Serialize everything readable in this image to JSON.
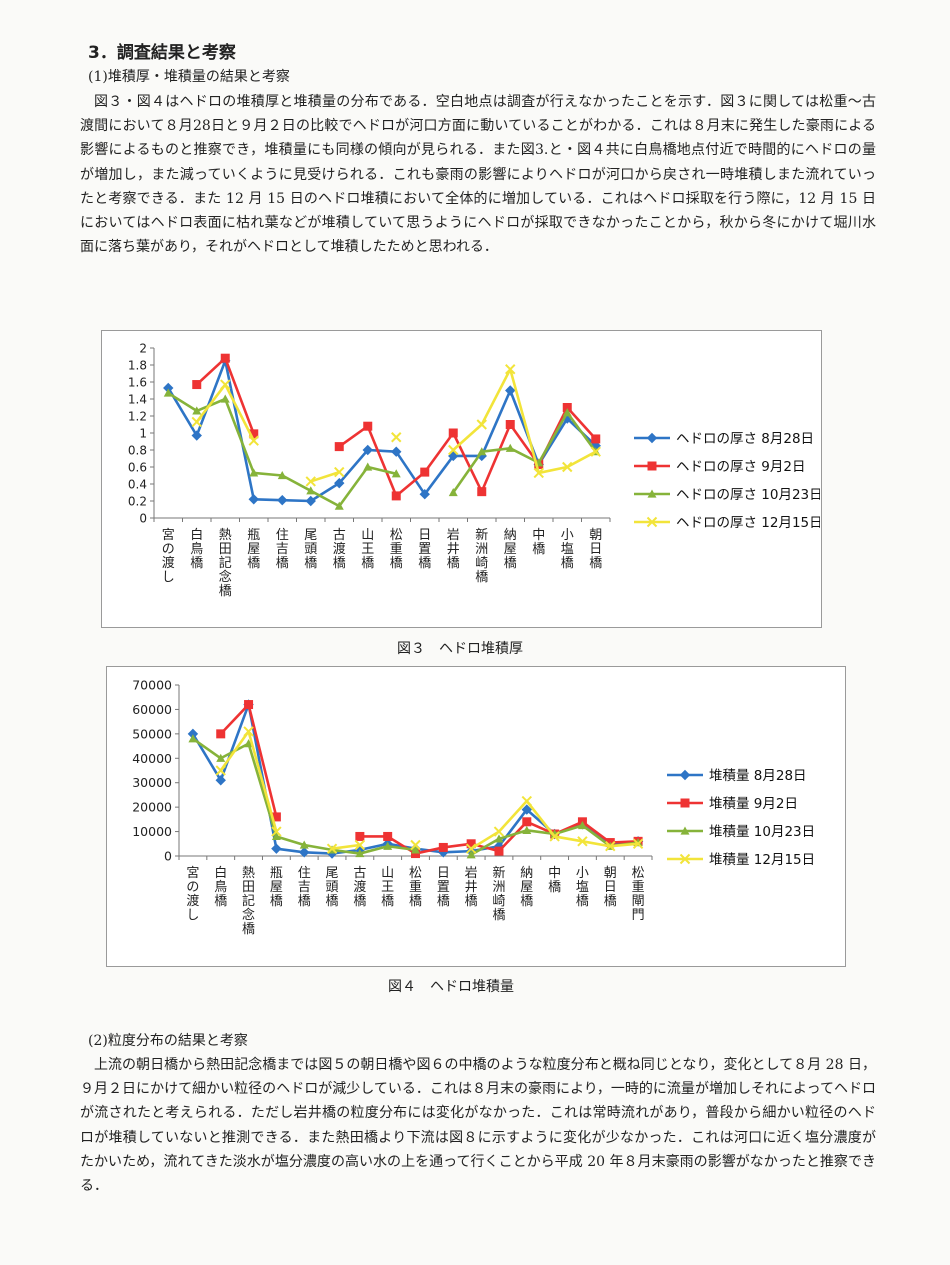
{
  "section_title": "3．調査結果と考察",
  "sub1_title": "(1)堆積厚・堆積量の結果と考察",
  "para1": "図３・図４はヘドロの堆積厚と堆積量の分布である．空白地点は調査が行えなかったことを示す．図３に関しては松重〜古渡間において８月28日と９月２日の比較でヘドロが河口方面に動いていることがわかる．これは８月末に発生した豪雨による影響によるものと推察でき，堆積量にも同様の傾向が見られる．また図3.と・図４共に白鳥橋地点付近で時間的にヘドロの量が増加し，また減っていくように見受けられる．これも豪雨の影響によりヘドロが河口から戻され一時堆積しまた流れていったと考察できる．また 12 月 15 日のヘドロ堆積において全体的に増加している．これはヘドロ採取を行う際に，12 月 15 日においてはヘドロ表面に枯れ葉などが堆積していて思うようにヘドロが採取できなかったことから，秋から冬にかけて堀川水面に落ち葉があり，それがヘドロとして堆積したためと思われる．",
  "fig3_caption": "図３　ヘドロ堆積厚",
  "fig4_caption": "図４　ヘドロ堆積量",
  "sub2_title": "(2)粒度分布の結果と考察",
  "para2": "上流の朝日橋から熱田記念橋までは図５の朝日橋や図６の中橋のような粒度分布と概ね同じとなり，変化として８月 28 日，９月２日にかけて細かい粒径のヘドロが減少している．これは８月末の豪雨により，一時的に流量が増加しそれによってヘドロが流されたと考えられる．ただし岩井橋の粒度分布には変化がなかった．これは常時流れがあり，普段から細かい粒径のヘドロが堆積していないと推測できる．また熱田橋より下流は図８に示すように変化が少なかった．これは河口に近く塩分濃度がたかいため，流れてきた淡水が塩分濃度の高い水の上を通って行くことから平成 20 年８月末豪雨の影響がなかったと推察できる．",
  "chart_data": [
    {
      "type": "line",
      "categories": [
        "宮の渡し",
        "白鳥橋",
        "熱田記念橋",
        "瓶屋橋",
        "住吉橋",
        "尾頭橋",
        "古渡橋",
        "山王橋",
        "松重橋",
        "日置橋",
        "岩井橋",
        "新洲崎橋",
        "納屋橋",
        "中橋",
        "小塩橋",
        "朝日橋"
      ],
      "ylim": [
        0,
        2
      ],
      "yticks": [
        "0",
        "0.2",
        "0.4",
        "0.6",
        "0.8",
        "1",
        "1.2",
        "1.4",
        "1.6",
        "1.8",
        "2"
      ],
      "series": [
        {
          "name": "ヘドロの厚さ 8月28日",
          "color": "#2e75c6",
          "marker": "diamond",
          "values": [
            1.53,
            0.97,
            1.85,
            0.22,
            0.21,
            0.2,
            0.41,
            0.8,
            0.78,
            0.28,
            0.73,
            0.73,
            1.5,
            0.63,
            1.17,
            0.85
          ]
        },
        {
          "name": "ヘドロの厚さ 9月2日",
          "color": "#ee3333",
          "marker": "square",
          "values": [
            null,
            1.57,
            1.88,
            0.99,
            null,
            null,
            0.84,
            1.08,
            0.26,
            0.54,
            1.0,
            0.31,
            1.1,
            0.63,
            1.3,
            0.93
          ]
        },
        {
          "name": "ヘドロの厚さ 10月23日",
          "color": "#86b33a",
          "marker": "triangle",
          "values": [
            1.47,
            1.26,
            1.4,
            0.53,
            0.5,
            0.32,
            0.14,
            0.6,
            0.52,
            null,
            0.3,
            0.78,
            0.82,
            0.65,
            1.24,
            0.78
          ]
        },
        {
          "name": "ヘドロの厚さ 12月15日",
          "color": "#f2e43a",
          "marker": "x",
          "values": [
            null,
            1.13,
            1.57,
            0.91,
            null,
            0.43,
            0.54,
            null,
            0.95,
            null,
            0.8,
            1.1,
            1.75,
            0.53,
            0.6,
            0.78
          ]
        }
      ]
    },
    {
      "type": "line",
      "categories": [
        "宮の渡し",
        "白鳥橋",
        "熱田記念橋",
        "瓶屋橋",
        "住吉橋",
        "尾頭橋",
        "古渡橋",
        "山王橋",
        "松重橋",
        "日置橋",
        "岩井橋",
        "新洲崎橋",
        "納屋橋",
        "中橋",
        "小塩橋",
        "朝日橋",
        "松重閘門"
      ],
      "ylim": [
        0,
        70000
      ],
      "yticks": [
        "0",
        "10000",
        "20000",
        "30000",
        "40000",
        "50000",
        "60000",
        "70000"
      ],
      "series": [
        {
          "name": "堆積量 8月28日",
          "color": "#2e75c6",
          "marker": "diamond",
          "values": [
            50000,
            31000,
            62000,
            3000,
            1500,
            1000,
            2500,
            5000,
            3000,
            1500,
            2000,
            4000,
            19000,
            9000,
            13000,
            5000,
            6000
          ]
        },
        {
          "name": "堆積量 9月2日",
          "color": "#ee3333",
          "marker": "square",
          "values": [
            null,
            50000,
            62000,
            16000,
            null,
            null,
            8000,
            8000,
            1000,
            3500,
            5000,
            2000,
            14000,
            9000,
            14000,
            5500,
            6000
          ]
        },
        {
          "name": "堆積量 10月23日",
          "color": "#86b33a",
          "marker": "triangle",
          "values": [
            48000,
            40000,
            46000,
            8000,
            4500,
            2500,
            1000,
            4000,
            2500,
            null,
            500,
            7000,
            10500,
            9000,
            12500,
            4000,
            5500
          ]
        },
        {
          "name": "堆積量 12月15日",
          "color": "#f2e43a",
          "marker": "x",
          "values": [
            null,
            35000,
            51000,
            10000,
            null,
            3000,
            4500,
            null,
            4500,
            null,
            3000,
            10000,
            22500,
            8000,
            6000,
            4000,
            5000
          ]
        }
      ]
    }
  ]
}
